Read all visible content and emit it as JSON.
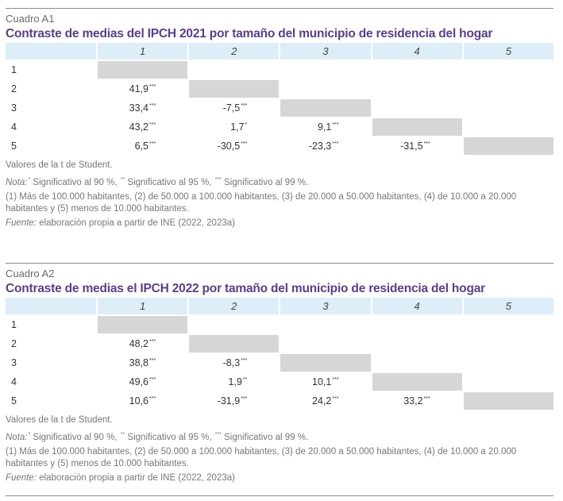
{
  "tables": [
    {
      "label": "Cuadro A1",
      "title": "Contraste de medias del IPCH 2021 por tamaño del municipio de residencia del hogar",
      "columns": [
        "",
        "1",
        "2",
        "3",
        "4",
        "5"
      ],
      "rows": [
        {
          "label": "1",
          "cells": [
            {
              "v": "",
              "s": ""
            },
            null,
            null,
            null,
            null
          ]
        },
        {
          "label": "2",
          "cells": [
            {
              "v": "41,9",
              "s": "***"
            },
            {
              "v": "",
              "s": ""
            },
            null,
            null,
            null
          ]
        },
        {
          "label": "3",
          "cells": [
            {
              "v": "33,4",
              "s": "***"
            },
            {
              "v": "-7,5",
              "s": "***"
            },
            {
              "v": "",
              "s": ""
            },
            null,
            null
          ]
        },
        {
          "label": "4",
          "cells": [
            {
              "v": "43,2",
              "s": "***"
            },
            {
              "v": "1,7",
              "s": "*"
            },
            {
              "v": "9,1",
              "s": "***"
            },
            {
              "v": "",
              "s": ""
            },
            null
          ]
        },
        {
          "label": "5",
          "cells": [
            {
              "v": "6,5",
              "s": "***"
            },
            {
              "v": "-30,5",
              "s": "***"
            },
            {
              "v": "-23,3",
              "s": "***"
            },
            {
              "v": "-31,5",
              "s": "***"
            },
            {
              "v": "",
              "s": ""
            }
          ]
        }
      ],
      "note_values": "Valores de la t de Student.",
      "note_label": "Nota:",
      "note_sig": [
        {
          "sup": "*",
          "text": " Significativo al 90 %, "
        },
        {
          "sup": "**",
          "text": " Significativo al 95 %, "
        },
        {
          "sup": "***",
          "text": " Significativo al 99 %."
        }
      ],
      "note_sizes": "(1) Más de 100.000 habitantes, (2) de 50.000 a 100.000 habitantes, (3) de 20.000 a 50.000 habitantes, (4) de 10.000 a 20.000 habitantes y (5) menos de 10.000 habitantes.",
      "source_label": "Fuente:",
      "source_text": " elaboración propia a partir de INE (2022, 2023a)"
    },
    {
      "label": "Cuadro A2",
      "title": "Contraste de medias el IPCH 2022 por tamaño del municipio de residencia del hogar",
      "columns": [
        "",
        "1",
        "2",
        "3",
        "4",
        "5"
      ],
      "rows": [
        {
          "label": "1",
          "cells": [
            {
              "v": "",
              "s": ""
            },
            null,
            null,
            null,
            null
          ]
        },
        {
          "label": "2",
          "cells": [
            {
              "v": "48,2",
              "s": "***"
            },
            {
              "v": "",
              "s": ""
            },
            null,
            null,
            null
          ]
        },
        {
          "label": "3",
          "cells": [
            {
              "v": "38,8",
              "s": "***"
            },
            {
              "v": "-8,3",
              "s": "***"
            },
            {
              "v": "",
              "s": ""
            },
            null,
            null
          ]
        },
        {
          "label": "4",
          "cells": [
            {
              "v": "49,6",
              "s": "***"
            },
            {
              "v": "1,9",
              "s": "**"
            },
            {
              "v": "10,1",
              "s": "***"
            },
            {
              "v": "",
              "s": ""
            },
            null
          ]
        },
        {
          "label": "5",
          "cells": [
            {
              "v": "10,6",
              "s": "***"
            },
            {
              "v": "-31,9",
              "s": "***"
            },
            {
              "v": "24,2",
              "s": "***"
            },
            {
              "v": "33,2",
              "s": "***"
            },
            {
              "v": "",
              "s": ""
            }
          ]
        }
      ],
      "note_values": "Valores de la t de Student.",
      "note_label": "Nota:",
      "note_sig": [
        {
          "sup": "*",
          "text": " Significativo al 90 %, "
        },
        {
          "sup": "**",
          "text": " Significativo al 95 %, "
        },
        {
          "sup": "***",
          "text": " Significativo al 99 %."
        }
      ],
      "note_sizes": "(1) Más de 100.000 habitantes, (2) de 50.000 a 100.000 habitantes, (3) de 20.000 a 50.000 habitantes, (4) de 10.000 a 20.000 habitantes y (5) menos de 10.000 habitantes.",
      "source_label": "Fuente:",
      "source_text": " elaboración propia a partir de INE (2022, 2023a)"
    }
  ]
}
